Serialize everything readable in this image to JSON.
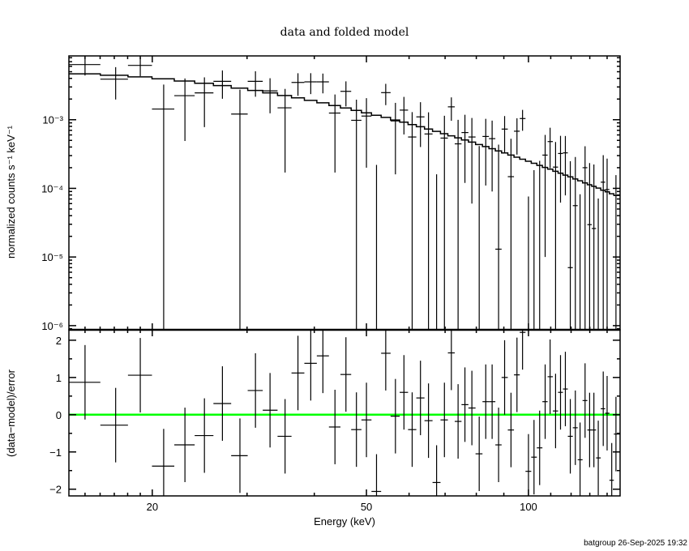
{
  "chart_data": [
    {
      "type": "scatter",
      "panel": "top",
      "title": "data and folded model",
      "ylabel": "normalized counts s⁻¹ keV⁻¹",
      "xscale": "log",
      "yscale": "log",
      "xlim": [
        14.0,
        148.0
      ],
      "ylim": [
        8.7e-07,
        0.0085
      ],
      "yticks": [
        {
          "value": 0.001,
          "label": "10⁻³"
        },
        {
          "value": 0.0001,
          "label": "10⁻⁴"
        },
        {
          "value": 1e-05,
          "label": "10⁻⁵"
        },
        {
          "value": 1e-06,
          "label": "10⁻⁶"
        }
      ],
      "series": [
        {
          "kind": "data with error bars",
          "color": "#000000"
        },
        {
          "kind": "folded model histogram",
          "color": "#000000"
        }
      ],
      "energy_keV": [
        15.0,
        17.1,
        19.0,
        21.0,
        23.0,
        25.0,
        27.0,
        29.1,
        31.1,
        33.1,
        35.3,
        37.3,
        39.4,
        41.5,
        43.7,
        45.8,
        47.9,
        50.0,
        52.2,
        54.3,
        56.6,
        58.7,
        60.8,
        63.0,
        65.2,
        67.5,
        69.8,
        71.9,
        74.0,
        76.2,
        78.5,
        81.0,
        83.3,
        85.6,
        88.0,
        90.3,
        92.8,
        95.2,
        97.5,
        100.0,
        102.4,
        104.9,
        107.4,
        109.7,
        112.3,
        114.7,
        117.1,
        119.6,
        122.2,
        124.7,
        127.4,
        129.9,
        132.3,
        134.8,
        137.7,
        140.0,
        142.8,
        145.4
      ],
      "rate": [
        0.00636,
        0.0039,
        0.00619,
        0.00143,
        0.00224,
        0.00246,
        0.00362,
        0.00121,
        0.00362,
        0.00263,
        0.00149,
        0.00349,
        0.00356,
        0.00356,
        0.00125,
        0.00259,
        0.00098,
        0.00113,
        -0.00066,
        0.00248,
        0.00096,
        0.00138,
        0.00056,
        0.0011,
        0.00062,
        -0.00047,
        0.00054,
        0.00154,
        0.000445,
        0.00065,
        0.00056,
        -6.7e-05,
        0.00057,
        0.00053,
        1.3e-05,
        0.00073,
        0.000148,
        0.00068,
        0.00104,
        -0.00026,
        -0.000136,
        -5.8e-05,
        0.000305,
        0.00048,
        0.000204,
        0.000322,
        0.000329,
        7e-06,
        5.6e-05,
        -0.00014,
        0.0002,
        2.96e-05,
        2.6e-05,
        -0.000119,
        0.000123,
        9.6e-05,
        -0.00021,
        -5e-06
      ],
      "rate_err": [
        0.00196,
        0.00193,
        0.00188,
        0.00182,
        0.00175,
        0.00168,
        0.0016,
        0.00153,
        0.00146,
        0.00139,
        0.00132,
        0.00126,
        0.0012,
        0.00114,
        0.00108,
        0.00103,
        0.00098,
        0.00093,
        0.00088,
        0.00085,
        0.0008,
        0.00077,
        0.00073,
        0.0007,
        0.00066,
        0.00063,
        0.0006,
        0.000575,
        0.00055,
        0.00053,
        0.0005,
        0.00048,
        0.00046,
        0.00044,
        0.00042,
        0.0004,
        0.00038,
        0.00037,
        0.00035,
        0.000336,
        0.00032,
        0.00031,
        0.000295,
        0.000284,
        0.00027,
        0.00026,
        0.00025,
        0.000241,
        0.00023,
        0.000222,
        0.00021,
        0.000204,
        0.000197,
        0.00019,
        0.000181,
        0.000175,
        0.000168,
        0.000161
      ],
      "model": [
        0.00466,
        0.00444,
        0.0042,
        0.00394,
        0.00366,
        0.0034,
        0.00314,
        0.00289,
        0.00267,
        0.00246,
        0.00225,
        0.00208,
        0.00191,
        0.00176,
        0.00161,
        0.00148,
        0.00137,
        0.00126,
        0.00116,
        0.00108,
        0.00099,
        0.00092,
        0.00085,
        0.00079,
        0.00073,
        0.000676,
        0.000625,
        0.000583,
        0.000544,
        0.000507,
        0.000471,
        0.000435,
        0.000406,
        0.000378,
        0.000351,
        0.000328,
        0.000305,
        0.000284,
        0.000266,
        0.000248,
        0.000232,
        0.000216,
        0.000202,
        0.00019,
        0.000177,
        0.000166,
        0.000156,
        0.000147,
        0.000137,
        0.000129,
        0.00012,
        0.000113,
        0.000107,
        0.000101,
        9.4e-05,
        8.9e-05,
        8.35e-05,
        7.86e-05
      ]
    },
    {
      "type": "scatter",
      "panel": "bottom",
      "ylabel": "(data−model)/error",
      "xlabel": "Energy (keV)",
      "xscale": "log",
      "xlim": [
        14.0,
        148.0
      ],
      "ylim": [
        -2.18,
        2.28
      ],
      "xticks": [
        {
          "value": 20,
          "label": "20"
        },
        {
          "value": 50,
          "label": "50"
        },
        {
          "value": 100,
          "label": "100"
        }
      ],
      "yticks": [
        {
          "value": 2,
          "label": "2"
        },
        {
          "value": 1,
          "label": "1"
        },
        {
          "value": 0,
          "label": "0"
        },
        {
          "value": -1,
          "label": "−1"
        },
        {
          "value": -2,
          "label": "−2"
        }
      ],
      "zero_line_color": "#00ff00",
      "residual": [
        0.87,
        -0.28,
        1.06,
        -1.38,
        -0.81,
        -0.56,
        0.3,
        -1.1,
        0.65,
        0.12,
        -0.58,
        1.12,
        1.38,
        1.58,
        -0.33,
        1.08,
        -0.4,
        -0.14,
        -2.06,
        1.65,
        -0.04,
        0.6,
        -0.4,
        0.45,
        -0.16,
        -1.82,
        -0.14,
        1.66,
        -0.18,
        0.27,
        0.18,
        -1.05,
        0.35,
        0.35,
        -0.81,
        1.0,
        -0.41,
        1.07,
        2.21,
        -1.52,
        -1.14,
        -0.89,
        0.35,
        1.02,
        0.1,
        0.6,
        0.69,
        -0.58,
        -0.35,
        -1.21,
        0.38,
        -0.41,
        -0.41,
        -1.16,
        0.16,
        0.04,
        -1.76,
        -0.52
      ],
      "residual_err": 1
    }
  ],
  "footer": "batgroup 26-Sep-2025 19:32"
}
